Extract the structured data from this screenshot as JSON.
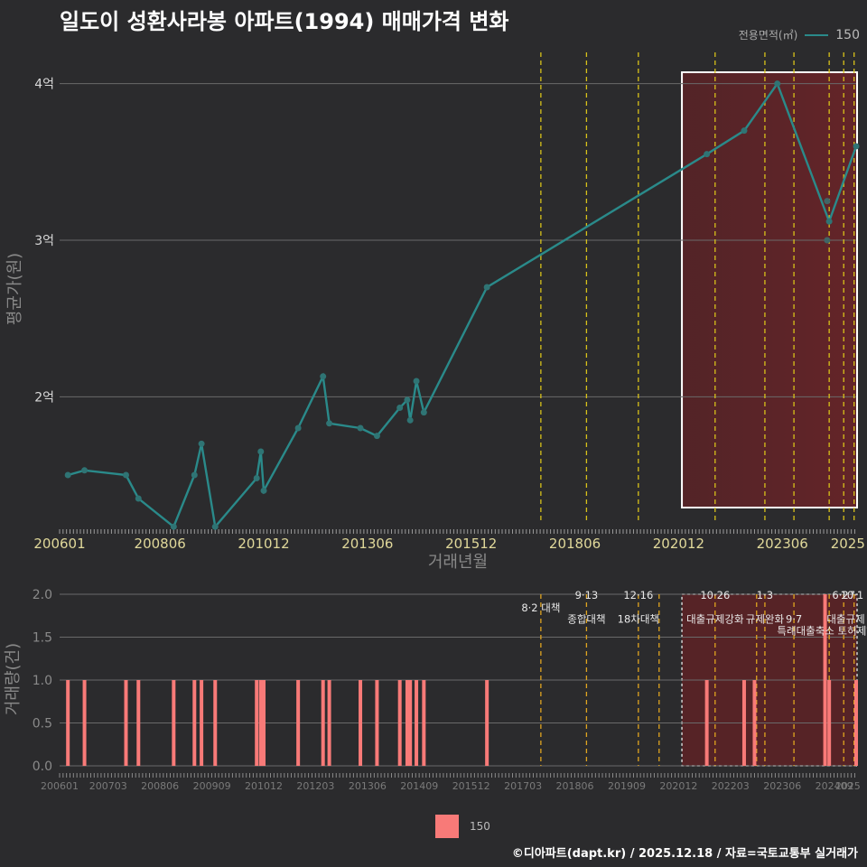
{
  "title": "일도이 성환사라봉 아파트(1994) 매매가격 변화",
  "legend": {
    "title": "전용면적(㎡)",
    "label": "150",
    "line_color": "#2a8a8a",
    "bar_color": "#f87a78"
  },
  "footer": "©디아파트(dapt.kr) / 2025.12.18 / 자료=국토교통부 실거래가",
  "chart_data": [
    {
      "type": "line",
      "title": "일도이 성환사라봉 아파트(1994) 매매가격 변화",
      "xlabel": "거래년월",
      "ylabel": "평균가(원)",
      "xlim": [
        2006.0,
        2025.2
      ],
      "ylim": [
        1.2,
        4.2
      ],
      "yticks": [
        {
          "v": 2,
          "label": "2억"
        },
        {
          "v": 3,
          "label": "3억"
        },
        {
          "v": 4,
          "label": "4억"
        }
      ],
      "xticks": [
        {
          "v": 2006.0,
          "label": "200601"
        },
        {
          "v": 2008.42,
          "label": "200806"
        },
        {
          "v": 2010.92,
          "label": "201012"
        },
        {
          "v": 2013.42,
          "label": "201306"
        },
        {
          "v": 2015.92,
          "label": "201512"
        },
        {
          "v": 2018.42,
          "label": "201806"
        },
        {
          "v": 2020.92,
          "label": "202012"
        },
        {
          "v": 2023.42,
          "label": "202306"
        },
        {
          "v": 2025.0,
          "label": "2025"
        }
      ],
      "series": [
        {
          "name": "150",
          "x": [
            2006.2,
            2006.6,
            2007.6,
            2007.9,
            2008.75,
            2009.25,
            2009.42,
            2009.75,
            2010.75,
            2010.85,
            2010.92,
            2011.75,
            2012.35,
            2012.5,
            2013.25,
            2013.65,
            2014.2,
            2014.38,
            2014.45,
            2014.6,
            2014.78,
            2016.3,
            2021.6,
            2022.5,
            2023.3,
            2024.55,
            2025.2
          ],
          "values": [
            1.5,
            1.53,
            1.5,
            1.35,
            1.17,
            1.5,
            1.7,
            1.17,
            1.48,
            1.65,
            1.4,
            1.8,
            2.13,
            1.83,
            1.8,
            1.75,
            1.93,
            1.98,
            1.85,
            2.1,
            1.9,
            2.7,
            3.55,
            3.7,
            4.0,
            3.12,
            3.6
          ],
          "extra_points": [
            {
              "x": 2024.5,
              "y": 3.25
            },
            {
              "x": 2024.5,
              "y": 3.0
            }
          ]
        }
      ],
      "highlight_range": [
        2021.0,
        2025.0
      ],
      "policy_lines": [
        2017.6,
        2018.7,
        2019.95,
        2021.8,
        2023.0,
        2023.7,
        2024.55,
        2024.9,
        2025.15
      ]
    },
    {
      "type": "bar",
      "ylabel": "거래량(건)",
      "xlim": [
        2006.0,
        2025.2
      ],
      "ylim": [
        0,
        2
      ],
      "yticks": [
        {
          "v": 0,
          "label": "0.0"
        },
        {
          "v": 0.5,
          "label": "0.5"
        },
        {
          "v": 1,
          "label": "1.0"
        },
        {
          "v": 1.5,
          "label": "1.5"
        },
        {
          "v": 2,
          "label": "2.0"
        }
      ],
      "xticks": [
        {
          "v": 2006.0,
          "label": "200601"
        },
        {
          "v": 2007.17,
          "label": "200703"
        },
        {
          "v": 2008.42,
          "label": "200806"
        },
        {
          "v": 2009.67,
          "label": "200909"
        },
        {
          "v": 2010.92,
          "label": "201012"
        },
        {
          "v": 2012.17,
          "label": "201203"
        },
        {
          "v": 2013.42,
          "label": "201306"
        },
        {
          "v": 2014.67,
          "label": "201409"
        },
        {
          "v": 2015.92,
          "label": "201512"
        },
        {
          "v": 2017.17,
          "label": "201703"
        },
        {
          "v": 2018.42,
          "label": "201806"
        },
        {
          "v": 2019.67,
          "label": "201909"
        },
        {
          "v": 2020.92,
          "label": "202012"
        },
        {
          "v": 2022.17,
          "label": "202203"
        },
        {
          "v": 2023.42,
          "label": "202306"
        },
        {
          "v": 2024.67,
          "label": "202409"
        },
        {
          "v": 2025.0,
          "label": "2025"
        }
      ],
      "x": [
        2006.2,
        2006.6,
        2007.6,
        2007.9,
        2008.75,
        2009.25,
        2009.42,
        2009.75,
        2010.75,
        2010.85,
        2010.92,
        2011.75,
        2012.35,
        2012.5,
        2013.25,
        2013.65,
        2014.2,
        2014.38,
        2014.45,
        2014.6,
        2014.78,
        2016.3,
        2021.6,
        2022.5,
        2022.75,
        2024.45,
        2024.55,
        2025.2
      ],
      "values": [
        1,
        1,
        1,
        1,
        1,
        1,
        1,
        1,
        1,
        1,
        1,
        1,
        1,
        1,
        1,
        1,
        1,
        1,
        1,
        1,
        1,
        1,
        1,
        1,
        1,
        2,
        1,
        1
      ],
      "highlight_range": [
        2021.0,
        2025.2
      ],
      "policy_lines": [
        2017.6,
        2018.7,
        2019.95,
        2020.45,
        2021.8,
        2022.8,
        2023.0,
        2023.7,
        2024.55,
        2024.9,
        2025.15
      ],
      "annotations": [
        {
          "x": 2017.6,
          "y": 1.8,
          "text": "8·2 대책"
        },
        {
          "x": 2018.7,
          "y": 1.95,
          "text": "9·13"
        },
        {
          "x": 2018.7,
          "y": 1.67,
          "text": "종합대책"
        },
        {
          "x": 2019.95,
          "y": 1.95,
          "text": "12·16"
        },
        {
          "x": 2019.95,
          "y": 1.67,
          "text": "18차대책"
        },
        {
          "x": 2021.8,
          "y": 1.95,
          "text": "10·26"
        },
        {
          "x": 2021.8,
          "y": 1.67,
          "text": "대출규제강화"
        },
        {
          "x": 2023.0,
          "y": 1.95,
          "text": "1·3"
        },
        {
          "x": 2023.0,
          "y": 1.67,
          "text": "규제완화"
        },
        {
          "x": 2023.7,
          "y": 1.67,
          "text": "9·7"
        },
        {
          "x": 2024.6,
          "y": 1.53,
          "text": "특례대출축소 토허제해제"
        },
        {
          "x": 2024.9,
          "y": 1.95,
          "text": "6·27"
        },
        {
          "x": 2025.1,
          "y": 1.95,
          "text": "10·1"
        },
        {
          "x": 2024.95,
          "y": 1.67,
          "text": "대출규제"
        }
      ]
    }
  ]
}
